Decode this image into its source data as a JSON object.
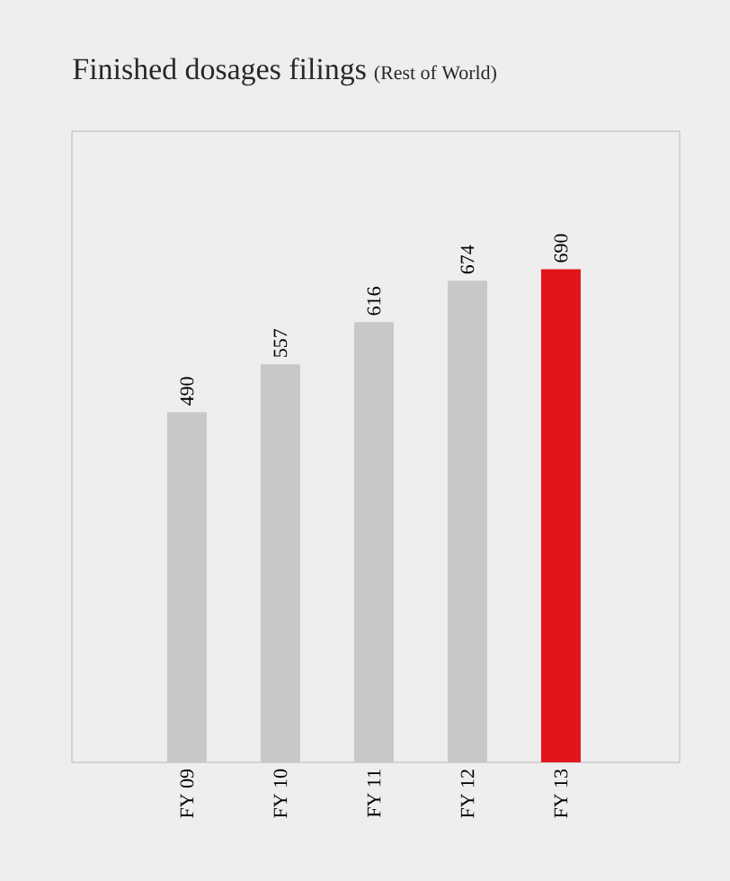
{
  "chart_data": {
    "type": "bar",
    "title": "Finished dosages filings",
    "subtitle": "(Rest of World)",
    "categories": [
      "FY 09",
      "FY 10",
      "FY 11",
      "FY 12",
      "FY 13"
    ],
    "values": [
      490,
      557,
      616,
      674,
      690
    ],
    "colors": [
      "#c8c8c8",
      "#c8c8c8",
      "#c8c8c8",
      "#c8c8c8",
      "#e3141b"
    ],
    "data_labels": true
  }
}
